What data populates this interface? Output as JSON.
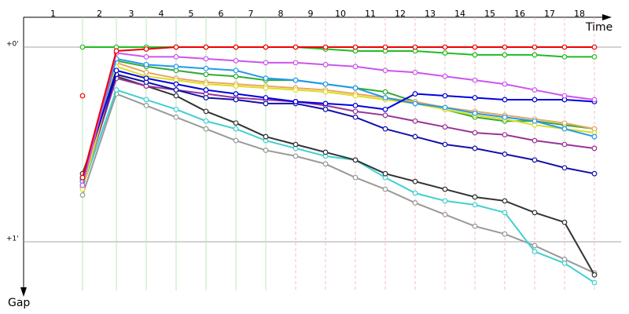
{
  "chart_data": {
    "type": "line",
    "x_label": "Time",
    "y_label": "Gap",
    "categories": [
      "1",
      "2",
      "3",
      "4",
      "5",
      "6",
      "7",
      "8",
      "9",
      "10",
      "11",
      "12",
      "13",
      "14",
      "15",
      "16",
      "17",
      "18"
    ],
    "ylim": [
      0,
      1.25
    ],
    "yticks": [
      {
        "value": 0,
        "label": "+0'"
      },
      {
        "value": 1,
        "label": "+1'"
      }
    ],
    "grid": true,
    "series": [
      {
        "color": "#ff0000",
        "values": [
          0.25,
          null,
          null,
          null,
          null,
          null,
          null,
          null,
          null,
          null,
          null,
          null,
          null,
          null,
          null,
          null,
          null,
          null
        ]
      },
      {
        "color": "#999999",
        "values": [
          0.76,
          0.24,
          0.3,
          0.36,
          0.42,
          0.48,
          0.53,
          0.56,
          0.6,
          0.67,
          0.73,
          0.8,
          0.86,
          0.92,
          0.96,
          1.02,
          1.09,
          1.16
        ]
      },
      {
        "color": "#40d0d0",
        "values": [
          0.72,
          0.22,
          0.27,
          0.32,
          0.38,
          0.42,
          0.48,
          0.52,
          0.56,
          0.58,
          0.67,
          0.75,
          0.79,
          0.81,
          0.85,
          1.05,
          1.11,
          1.21
        ]
      },
      {
        "color": "#333333",
        "values": [
          0.65,
          0.15,
          0.2,
          0.25,
          0.33,
          0.39,
          0.46,
          0.5,
          0.54,
          0.58,
          0.65,
          0.69,
          0.73,
          0.77,
          0.79,
          0.85,
          0.9,
          1.17
        ]
      },
      {
        "color": "#993399",
        "values": [
          0.71,
          0.16,
          0.2,
          0.22,
          0.24,
          0.26,
          0.27,
          0.28,
          0.3,
          0.33,
          0.35,
          0.38,
          0.41,
          0.44,
          0.45,
          0.48,
          0.5,
          0.52
        ]
      },
      {
        "color": "#1111aa",
        "values": [
          0.69,
          0.14,
          0.18,
          0.22,
          0.26,
          0.27,
          0.29,
          0.29,
          0.32,
          0.36,
          0.42,
          0.46,
          0.5,
          0.52,
          0.55,
          0.58,
          0.62,
          0.65
        ]
      },
      {
        "color": "#33aa33",
        "values": [
          0.68,
          0.07,
          0.1,
          0.12,
          0.14,
          0.15,
          0.17,
          0.17,
          0.19,
          0.21,
          0.23,
          0.28,
          0.32,
          0.36,
          0.38,
          0.38,
          0.4,
          0.42
        ]
      },
      {
        "color": "#e8a860",
        "values": [
          0.72,
          0.08,
          0.13,
          0.16,
          0.18,
          0.19,
          0.2,
          0.21,
          0.22,
          0.24,
          0.26,
          0.28,
          0.31,
          0.33,
          0.35,
          0.37,
          0.39,
          0.42
        ]
      },
      {
        "color": "#dddd22",
        "values": [
          0.73,
          0.1,
          0.15,
          0.17,
          0.19,
          0.2,
          0.21,
          0.22,
          0.23,
          0.25,
          0.27,
          0.29,
          0.32,
          0.35,
          0.37,
          0.4,
          0.42,
          0.44
        ]
      },
      {
        "color": "#2299ee",
        "values": [
          0.69,
          0.06,
          0.09,
          0.1,
          0.11,
          0.12,
          0.16,
          0.17,
          0.19,
          0.21,
          0.26,
          0.29,
          0.31,
          0.34,
          0.36,
          0.38,
          0.42,
          0.46
        ]
      },
      {
        "color": "#0000dd",
        "values": [
          0.67,
          0.12,
          0.16,
          0.19,
          0.22,
          0.24,
          0.26,
          0.28,
          0.29,
          0.3,
          0.32,
          0.24,
          0.25,
          0.26,
          0.27,
          0.27,
          0.27,
          0.28
        ]
      },
      {
        "color": "#cc55ee",
        "values": [
          0.71,
          0.03,
          0.05,
          0.05,
          0.06,
          0.07,
          0.08,
          0.08,
          0.09,
          0.1,
          0.12,
          0.13,
          0.15,
          0.17,
          0.19,
          0.22,
          0.25,
          0.27
        ]
      },
      {
        "color": "#22bb22",
        "values": [
          0,
          0,
          0,
          0,
          0,
          0,
          0,
          0,
          0.01,
          0.02,
          0.02,
          0.02,
          0.03,
          0.04,
          0.04,
          0.04,
          0.05,
          0.05
        ]
      },
      {
        "color": "#ee0000",
        "values": [
          0.67,
          0.02,
          0.01,
          0,
          0,
          0,
          0,
          0,
          0,
          0,
          0,
          0,
          0,
          0,
          0,
          0,
          0,
          0
        ]
      }
    ]
  }
}
